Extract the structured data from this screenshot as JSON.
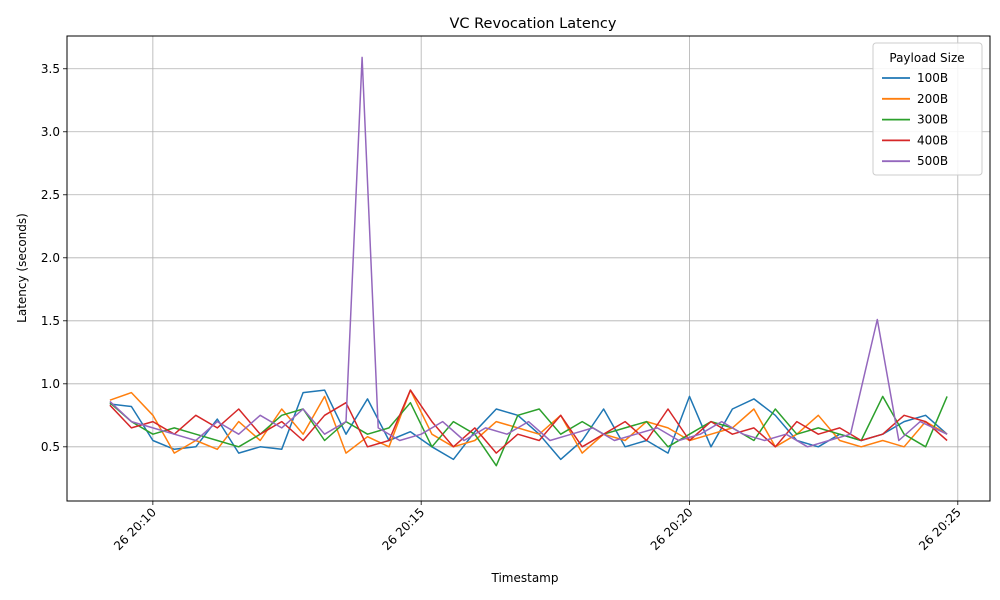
{
  "chart_data": {
    "type": "line",
    "title": "VC Revocation Latency",
    "xlabel": "Timestamp",
    "ylabel": "Latency (seconds)",
    "x_unit": "minutes",
    "x_tick_values": [
      10,
      15,
      20,
      25
    ],
    "x_tick_labels": [
      "26 20:10",
      "26 20:15",
      "26 20:20",
      "26 20:25"
    ],
    "xlim": [
      8.4,
      25.6
    ],
    "y_tick_values": [
      0.5,
      1.0,
      1.5,
      2.0,
      2.5,
      3.0,
      3.5
    ],
    "y_tick_labels": [
      "0.5",
      "1.0",
      "1.5",
      "2.0",
      "2.5",
      "3.0",
      "3.5"
    ],
    "ylim": [
      0.07,
      3.76
    ],
    "grid": true,
    "legend_title": "Payload Size",
    "legend_position": "top-right",
    "series": [
      {
        "name": "100B",
        "color": "#1f77b4",
        "x": [
          9.2,
          9.6,
          10.0,
          10.4,
          10.8,
          11.2,
          11.6,
          12.0,
          12.4,
          12.8,
          13.2,
          13.6,
          14.0,
          14.4,
          14.8,
          15.2,
          15.6,
          16.0,
          16.4,
          16.8,
          17.2,
          17.6,
          18.0,
          18.4,
          18.8,
          19.2,
          19.6,
          20.0,
          20.4,
          20.8,
          21.2,
          21.6,
          22.0,
          22.4,
          22.8,
          23.2,
          23.6,
          24.0,
          24.4,
          24.8
        ],
        "y": [
          0.84,
          0.82,
          0.55,
          0.48,
          0.5,
          0.72,
          0.45,
          0.5,
          0.48,
          0.93,
          0.95,
          0.6,
          0.88,
          0.55,
          0.62,
          0.5,
          0.4,
          0.62,
          0.8,
          0.75,
          0.6,
          0.4,
          0.55,
          0.8,
          0.5,
          0.55,
          0.45,
          0.9,
          0.5,
          0.8,
          0.88,
          0.75,
          0.55,
          0.5,
          0.6,
          0.55,
          0.6,
          0.7,
          0.75,
          0.6
        ]
      },
      {
        "name": "200B",
        "color": "#ff7f0e",
        "x": [
          9.2,
          9.6,
          10.0,
          10.4,
          10.8,
          11.2,
          11.6,
          12.0,
          12.4,
          12.8,
          13.2,
          13.6,
          14.0,
          14.4,
          14.8,
          15.2,
          15.6,
          16.0,
          16.4,
          16.8,
          17.2,
          17.6,
          18.0,
          18.4,
          18.8,
          19.2,
          19.6,
          20.0,
          20.4,
          20.8,
          21.2,
          21.6,
          22.0,
          22.4,
          22.8,
          23.2,
          23.6,
          24.0,
          24.4,
          24.8
        ],
        "y": [
          0.87,
          0.93,
          0.75,
          0.45,
          0.55,
          0.48,
          0.7,
          0.55,
          0.8,
          0.6,
          0.9,
          0.45,
          0.58,
          0.5,
          0.95,
          0.6,
          0.5,
          0.55,
          0.7,
          0.65,
          0.6,
          0.75,
          0.45,
          0.6,
          0.55,
          0.7,
          0.65,
          0.55,
          0.6,
          0.65,
          0.8,
          0.5,
          0.6,
          0.75,
          0.55,
          0.5,
          0.55,
          0.5,
          0.7,
          0.6
        ]
      },
      {
        "name": "300B",
        "color": "#2ca02c",
        "x": [
          9.2,
          9.6,
          10.0,
          10.4,
          10.8,
          11.2,
          11.6,
          12.0,
          12.4,
          12.8,
          13.2,
          13.6,
          14.0,
          14.4,
          14.8,
          15.2,
          15.6,
          16.0,
          16.4,
          16.8,
          17.2,
          17.6,
          18.0,
          18.4,
          18.8,
          19.2,
          19.6,
          20.0,
          20.4,
          20.8,
          21.2,
          21.6,
          22.0,
          22.4,
          22.8,
          23.2,
          23.6,
          24.0,
          24.4,
          24.8
        ],
        "y": [
          0.85,
          0.7,
          0.6,
          0.65,
          0.6,
          0.55,
          0.5,
          0.6,
          0.75,
          0.8,
          0.55,
          0.7,
          0.6,
          0.65,
          0.85,
          0.5,
          0.7,
          0.6,
          0.35,
          0.75,
          0.8,
          0.6,
          0.7,
          0.6,
          0.65,
          0.7,
          0.5,
          0.6,
          0.7,
          0.65,
          0.55,
          0.8,
          0.6,
          0.65,
          0.6,
          0.55,
          0.9,
          0.6,
          0.5,
          0.9
        ]
      },
      {
        "name": "400B",
        "color": "#d62728",
        "x": [
          9.2,
          9.6,
          10.0,
          10.4,
          10.8,
          11.2,
          11.6,
          12.0,
          12.4,
          12.8,
          13.2,
          13.6,
          14.0,
          14.4,
          14.8,
          15.2,
          15.6,
          16.0,
          16.4,
          16.8,
          17.2,
          17.6,
          18.0,
          18.4,
          18.8,
          19.2,
          19.6,
          20.0,
          20.4,
          20.8,
          21.2,
          21.6,
          22.0,
          22.4,
          22.8,
          23.2,
          23.6,
          24.0,
          24.4,
          24.8
        ],
        "y": [
          0.83,
          0.65,
          0.7,
          0.6,
          0.75,
          0.65,
          0.8,
          0.6,
          0.7,
          0.55,
          0.75,
          0.85,
          0.5,
          0.55,
          0.95,
          0.7,
          0.5,
          0.65,
          0.45,
          0.6,
          0.55,
          0.75,
          0.5,
          0.6,
          0.7,
          0.55,
          0.8,
          0.55,
          0.7,
          0.6,
          0.65,
          0.5,
          0.7,
          0.6,
          0.65,
          0.55,
          0.6,
          0.75,
          0.7,
          0.55
        ]
      },
      {
        "name": "500B",
        "color": "#9467bd",
        "x": [
          9.2,
          9.6,
          10.0,
          10.4,
          10.8,
          11.2,
          11.6,
          12.0,
          12.4,
          12.8,
          13.2,
          13.6,
          13.9,
          14.2,
          14.6,
          15.0,
          15.4,
          15.8,
          16.2,
          16.6,
          17.0,
          17.4,
          17.8,
          18.2,
          18.6,
          19.0,
          19.4,
          19.8,
          20.2,
          20.6,
          21.0,
          21.4,
          21.8,
          22.2,
          22.6,
          23.0,
          23.5,
          23.9,
          24.3,
          24.8
        ],
        "y": [
          0.86,
          0.7,
          0.65,
          0.6,
          0.55,
          0.7,
          0.6,
          0.75,
          0.65,
          0.8,
          0.6,
          0.7,
          3.59,
          0.65,
          0.55,
          0.6,
          0.7,
          0.55,
          0.65,
          0.6,
          0.7,
          0.55,
          0.6,
          0.65,
          0.55,
          0.6,
          0.65,
          0.55,
          0.6,
          0.7,
          0.6,
          0.55,
          0.6,
          0.5,
          0.55,
          0.6,
          1.51,
          0.55,
          0.7,
          0.6
        ]
      }
    ]
  }
}
